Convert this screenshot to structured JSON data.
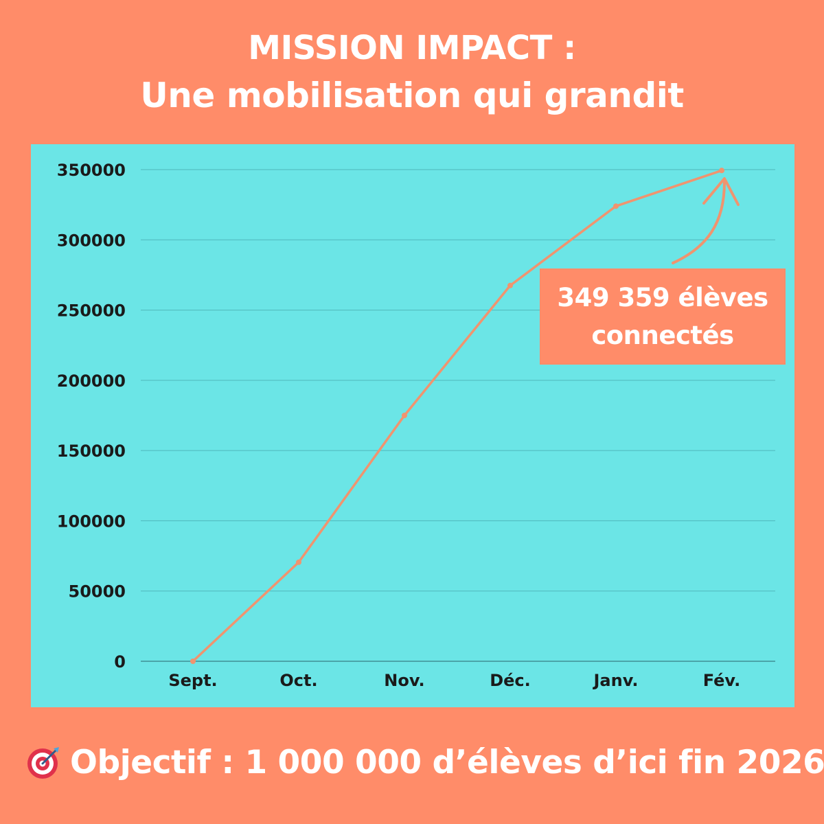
{
  "header": {
    "title_line1": "MISSION IMPACT :",
    "title_line2": "Une mobilisation qui grandit"
  },
  "callout": {
    "line1": "349 359 élèves",
    "line2": "connectés"
  },
  "footer": {
    "icon": "target-icon",
    "objective": "Objectif : 1 000 000 d’élèves d’ici fin 2026"
  },
  "colors": {
    "background": "#FF8C69",
    "panel": "#6BE5E6",
    "line": "#F0946F",
    "grid": "#4FB7BB",
    "text_dark": "#1A1A1A",
    "text_light": "#FFFFFF"
  },
  "chart_data": {
    "type": "line",
    "title": "",
    "xlabel": "",
    "ylabel": "",
    "categories": [
      "Sept.",
      "Oct.",
      "Nov.",
      "Déc.",
      "Janv.",
      "Fév."
    ],
    "series": [
      {
        "values": [
          0,
          70500,
          175000,
          267500,
          324000,
          349359
        ]
      }
    ],
    "ylim": [
      0,
      350000
    ],
    "yticks": [
      0,
      50000,
      100000,
      150000,
      200000,
      250000,
      300000,
      350000
    ],
    "grid": true,
    "legend": "none"
  }
}
